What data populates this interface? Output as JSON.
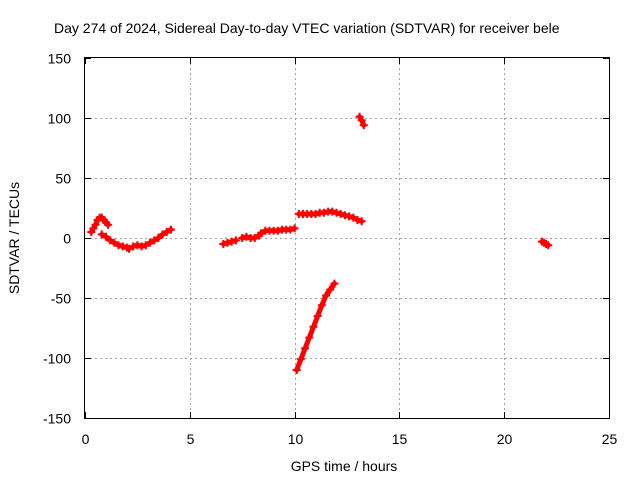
{
  "chart_data": {
    "type": "scatter",
    "title": "Day 274 of 2024, Sidereal Day-to-day VTEC variation (SDTVAR) for receiver bele",
    "xlabel": "GPS time / hours",
    "ylabel": "SDTVAR / TECUs",
    "xlim": [
      0,
      25
    ],
    "ylim": [
      -150,
      150
    ],
    "xticks": [
      0,
      5,
      10,
      15,
      20,
      25
    ],
    "yticks": [
      -150,
      -100,
      -50,
      0,
      50,
      100,
      150
    ],
    "grid": true,
    "legend": "none",
    "marker": "plus",
    "color": "#ff0000",
    "series": [
      {
        "x": [
          0.3,
          0.4,
          0.5,
          0.6,
          0.7,
          0.8,
          0.9,
          1.0,
          1.1
        ],
        "y": [
          5,
          8,
          11,
          15,
          17,
          17,
          15,
          13,
          11
        ]
      },
      {
        "x": [
          0.8,
          1.0,
          1.2,
          1.4,
          1.6,
          1.8,
          2.0,
          2.1
        ],
        "y": [
          3,
          1,
          -2,
          -4,
          -6,
          -7,
          -8,
          -9
        ]
      },
      {
        "x": [
          2.3,
          2.5,
          2.7,
          2.9,
          3.1,
          3.3,
          3.5,
          3.7,
          3.9,
          4.1
        ],
        "y": [
          -7,
          -6,
          -7,
          -6,
          -4,
          -2,
          0,
          3,
          5,
          7
        ]
      },
      {
        "x": [
          6.6,
          6.8,
          7.0,
          7.2
        ],
        "y": [
          -5,
          -4,
          -3,
          -2
        ]
      },
      {
        "x": [
          7.5,
          7.7,
          7.9,
          8.1,
          8.3
        ],
        "y": [
          0,
          1,
          0,
          0,
          2
        ]
      },
      {
        "x": [
          8.4,
          8.6,
          8.8,
          9.0,
          9.2,
          9.4,
          9.6,
          9.8,
          10.0
        ],
        "y": [
          4,
          6,
          6,
          6,
          6,
          7,
          7,
          7,
          8
        ]
      },
      {
        "x": [
          10.2,
          10.4,
          10.6,
          10.8,
          11.0,
          11.2,
          11.4,
          11.6,
          11.8,
          12.0,
          12.2,
          12.4,
          12.6,
          12.8,
          13.0,
          13.2
        ],
        "y": [
          20,
          20,
          20,
          20,
          20,
          21,
          21,
          22,
          22,
          21,
          20,
          19,
          18,
          17,
          15,
          14
        ]
      },
      {
        "x": [
          10.1,
          10.3,
          10.5,
          10.7,
          10.9,
          11.1,
          11.3,
          11.5,
          11.7,
          11.9
        ],
        "y": [
          -110,
          -101,
          -92,
          -83,
          -74,
          -65,
          -56,
          -48,
          -43,
          -38
        ]
      },
      {
        "x": [
          13.1,
          13.2,
          13.3
        ],
        "y": [
          101,
          98,
          94
        ]
      },
      {
        "x": [
          21.8,
          21.9,
          22.0,
          22.1
        ],
        "y": [
          -3,
          -4,
          -5,
          -6
        ]
      }
    ]
  }
}
